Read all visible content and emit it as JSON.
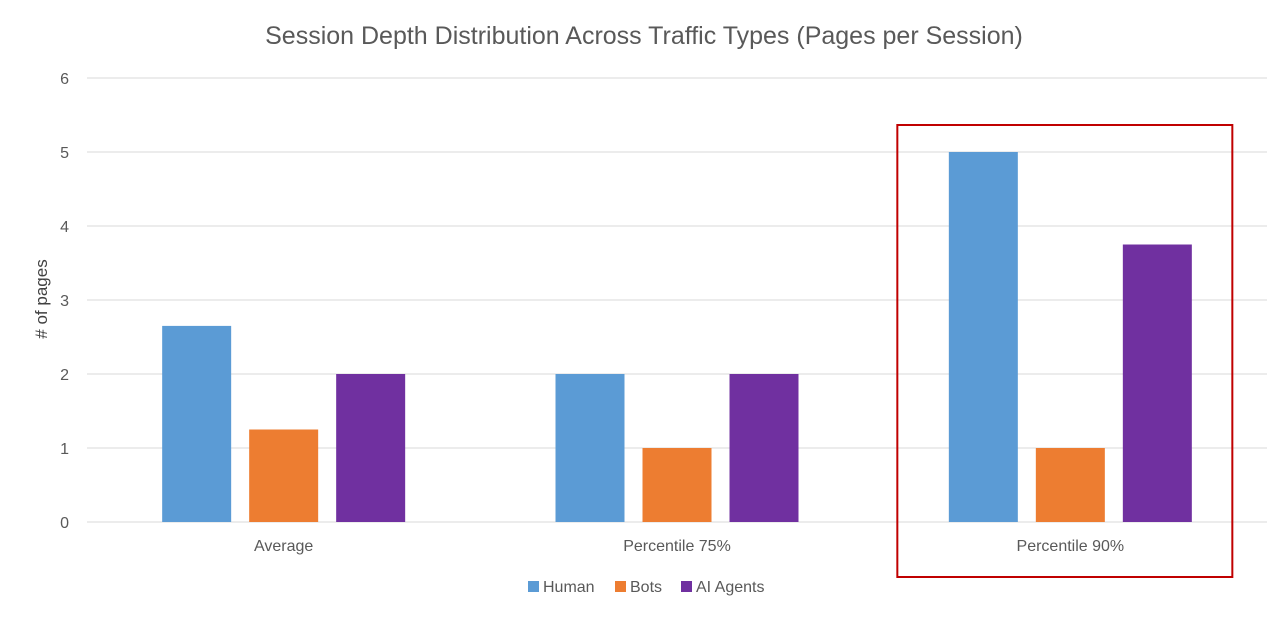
{
  "chart_data": {
    "type": "bar",
    "title": "Session Depth Distribution Across Traffic Types (Pages per Session)",
    "xlabel": "",
    "ylabel": "# of pages",
    "ylim": [
      0,
      6
    ],
    "yticks": [
      0,
      1,
      2,
      3,
      4,
      5,
      6
    ],
    "categories": [
      "Average",
      "Percentile 75%",
      "Percentile 90%"
    ],
    "series": [
      {
        "name": "Human",
        "color": "#5b9bd5",
        "values": [
          2.65,
          2,
          5
        ]
      },
      {
        "name": "Bots",
        "color": "#ed7d31",
        "values": [
          1.25,
          1,
          1
        ]
      },
      {
        "name": "AI Agents",
        "color": "#7030a0",
        "values": [
          2,
          2,
          3.75
        ]
      }
    ],
    "grid": true,
    "legend_position": "bottom",
    "highlight": {
      "category": "Percentile 90%",
      "color": "#c00000"
    }
  }
}
